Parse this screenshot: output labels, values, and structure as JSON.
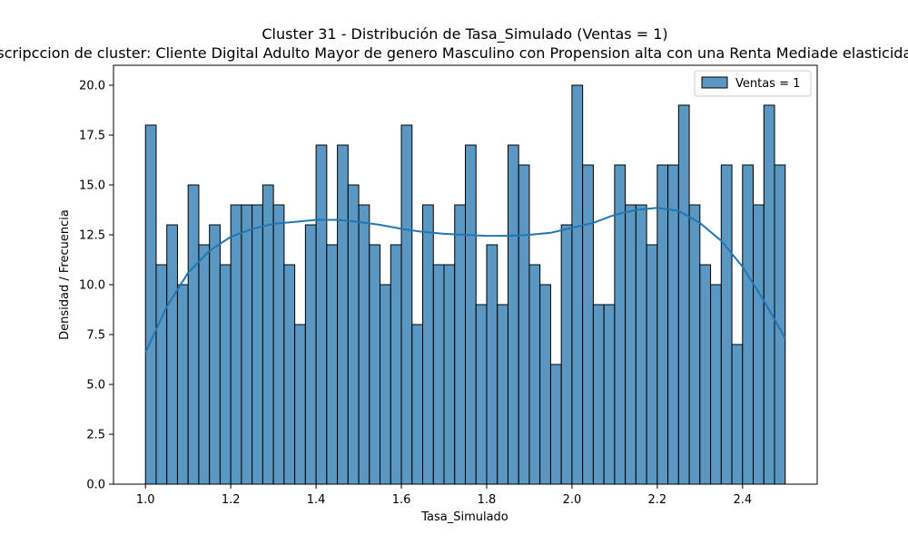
{
  "chart_data": {
    "type": "bar",
    "title": "Cluster 31 - Distribución de Tasa_Simulado (Ventas = 1)",
    "subtitle": "Descripccion de cluster: Cliente Digital Adulto Mayor de genero Masculino con Propension alta con una Renta Mediade elasticidad alta",
    "xlabel": "Tasa_Simulado",
    "ylabel": "Densidad / Frecuencia",
    "xlim": [
      0.925,
      2.575
    ],
    "ylim": [
      0,
      21
    ],
    "x_ticks": [
      "1.0",
      "1.2",
      "1.4",
      "1.6",
      "1.8",
      "2.0",
      "2.2",
      "2.4"
    ],
    "y_ticks": [
      "0.0",
      "2.5",
      "5.0",
      "7.5",
      "10.0",
      "12.5",
      "15.0",
      "17.5",
      "20.0"
    ],
    "grid": false,
    "legend_position": "top-right",
    "bin_range": [
      1.0,
      2.5
    ],
    "series": [
      {
        "name": "Ventas = 1",
        "color": "#5b97c3",
        "edge_color": "#000000",
        "values": [
          18,
          11,
          13,
          10,
          15,
          12,
          13,
          11,
          14,
          14,
          14,
          15,
          14,
          11,
          8,
          13,
          17,
          12,
          17,
          15,
          14,
          12,
          10,
          12,
          18,
          8,
          14,
          11,
          11,
          14,
          17,
          9,
          12,
          9,
          17,
          16,
          11,
          10,
          6,
          13,
          20,
          16,
          9,
          9,
          16,
          14,
          14,
          12,
          16,
          16,
          19,
          14,
          11,
          10,
          16,
          7,
          16,
          14,
          19,
          16
        ]
      }
    ],
    "kde": {
      "color": "#1f77b4",
      "x": [
        1.0,
        1.05,
        1.1,
        1.15,
        1.2,
        1.25,
        1.3,
        1.35,
        1.4,
        1.45,
        1.5,
        1.55,
        1.6,
        1.65,
        1.7,
        1.75,
        1.8,
        1.85,
        1.9,
        1.95,
        2.0,
        2.05,
        2.1,
        2.15,
        2.2,
        2.25,
        2.3,
        2.35,
        2.4,
        2.45,
        2.5
      ],
      "y": [
        6.6,
        8.9,
        10.6,
        11.7,
        12.4,
        12.8,
        13.05,
        13.15,
        13.25,
        13.25,
        13.15,
        13.0,
        12.8,
        12.65,
        12.55,
        12.5,
        12.45,
        12.45,
        12.5,
        12.6,
        12.85,
        13.1,
        13.5,
        13.75,
        13.85,
        13.7,
        13.1,
        12.2,
        10.9,
        9.2,
        7.3
      ]
    }
  }
}
